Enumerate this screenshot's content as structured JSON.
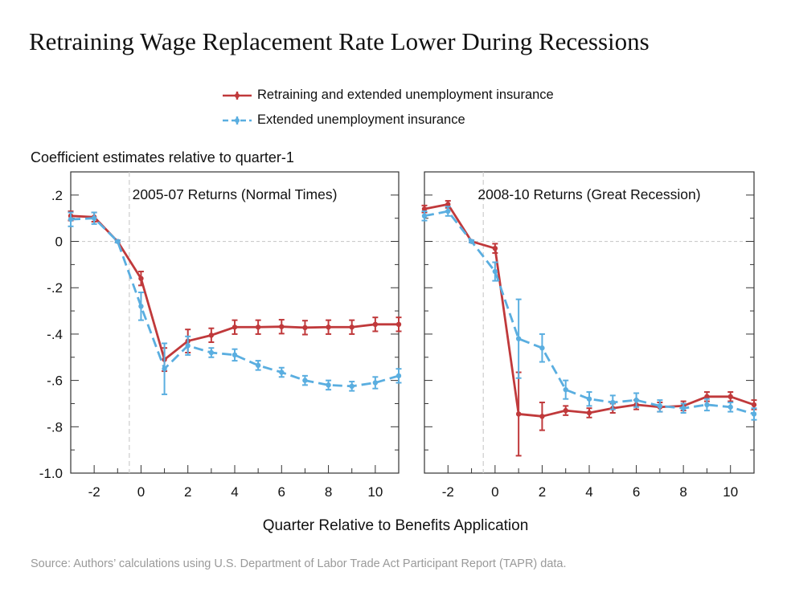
{
  "title": "Retraining Wage Replacement Rate Lower During Recessions",
  "legend": [
    {
      "label": "Retraining and extended unemployment insurance",
      "color": "#c0393b"
    },
    {
      "label": "Extended unemployment insurance",
      "color": "#5aaee0"
    }
  ],
  "ylabel": "Coefficient estimates relative to quarter-1",
  "xlabel": "Quarter Relative to Benefits Application",
  "source": "Source: Authors’ calculations using U.S. Department of Labor Trade Act Participant Report (TAPR) data.",
  "chart_data": [
    {
      "type": "line",
      "title": "2005-07 Returns (Normal Times)",
      "x": [
        -3,
        -2,
        -1,
        0,
        1,
        2,
        3,
        4,
        5,
        6,
        7,
        8,
        9,
        10,
        11
      ],
      "xlim": [
        -3,
        11
      ],
      "ylim": [
        -1.0,
        0.3
      ],
      "xticks": [
        -2,
        0,
        2,
        4,
        6,
        8,
        10
      ],
      "yticks": [
        0.2,
        0,
        -0.2,
        -0.4,
        -0.6,
        -0.8,
        -1.0
      ],
      "ytick_labels": [
        ".2",
        "0",
        "-.2",
        "-.4",
        "-.6",
        "-.8",
        "-1.0"
      ],
      "reference_x": -0.5,
      "reference_y": 0,
      "series": [
        {
          "name": "Retraining and extended unemployment insurance",
          "color": "#c0393b",
          "dashed": false,
          "values": [
            0.11,
            0.105,
            0.0,
            -0.16,
            -0.51,
            -0.43,
            -0.405,
            -0.37,
            -0.37,
            -0.368,
            -0.372,
            -0.37,
            -0.37,
            -0.358,
            -0.358
          ],
          "errors": [
            0.02,
            0.02,
            0.005,
            0.03,
            0.05,
            0.05,
            0.03,
            0.03,
            0.03,
            0.03,
            0.03,
            0.03,
            0.03,
            0.03,
            0.03
          ]
        },
        {
          "name": "Extended unemployment insurance",
          "color": "#5aaee0",
          "dashed": true,
          "values": [
            0.095,
            0.1,
            0.0,
            -0.28,
            -0.55,
            -0.45,
            -0.48,
            -0.49,
            -0.535,
            -0.565,
            -0.6,
            -0.62,
            -0.625,
            -0.61,
            -0.58
          ],
          "errors": [
            0.03,
            0.025,
            0.005,
            0.06,
            0.11,
            0.04,
            0.02,
            0.025,
            0.02,
            0.02,
            0.02,
            0.02,
            0.02,
            0.025,
            0.03
          ]
        }
      ]
    },
    {
      "type": "line",
      "title": "2008-10 Returns (Great Recession)",
      "x": [
        -3,
        -2,
        -1,
        0,
        1,
        2,
        3,
        4,
        5,
        6,
        7,
        8,
        9,
        10,
        11
      ],
      "xlim": [
        -3,
        11
      ],
      "ylim": [
        -1.0,
        0.3
      ],
      "xticks": [
        -2,
        0,
        2,
        4,
        6,
        8,
        10
      ],
      "reference_x": -0.5,
      "reference_y": 0,
      "series": [
        {
          "name": "Retraining and extended unemployment insurance",
          "color": "#c0393b",
          "dashed": false,
          "values": [
            0.14,
            0.16,
            0.0,
            -0.03,
            -0.745,
            -0.755,
            -0.73,
            -0.74,
            -0.72,
            -0.705,
            -0.715,
            -0.71,
            -0.67,
            -0.67,
            -0.705
          ],
          "errors": [
            0.015,
            0.015,
            0.005,
            0.02,
            0.18,
            0.06,
            0.02,
            0.02,
            0.02,
            0.02,
            0.02,
            0.02,
            0.02,
            0.02,
            0.02
          ]
        },
        {
          "name": "Extended unemployment insurance",
          "color": "#5aaee0",
          "dashed": true,
          "values": [
            0.11,
            0.13,
            0.0,
            -0.13,
            -0.42,
            -0.46,
            -0.64,
            -0.68,
            -0.695,
            -0.685,
            -0.71,
            -0.72,
            -0.705,
            -0.715,
            -0.745
          ],
          "errors": [
            0.02,
            0.02,
            0.005,
            0.04,
            0.17,
            0.06,
            0.04,
            0.03,
            0.03,
            0.03,
            0.025,
            0.02,
            0.025,
            0.02,
            0.025
          ]
        }
      ]
    }
  ]
}
